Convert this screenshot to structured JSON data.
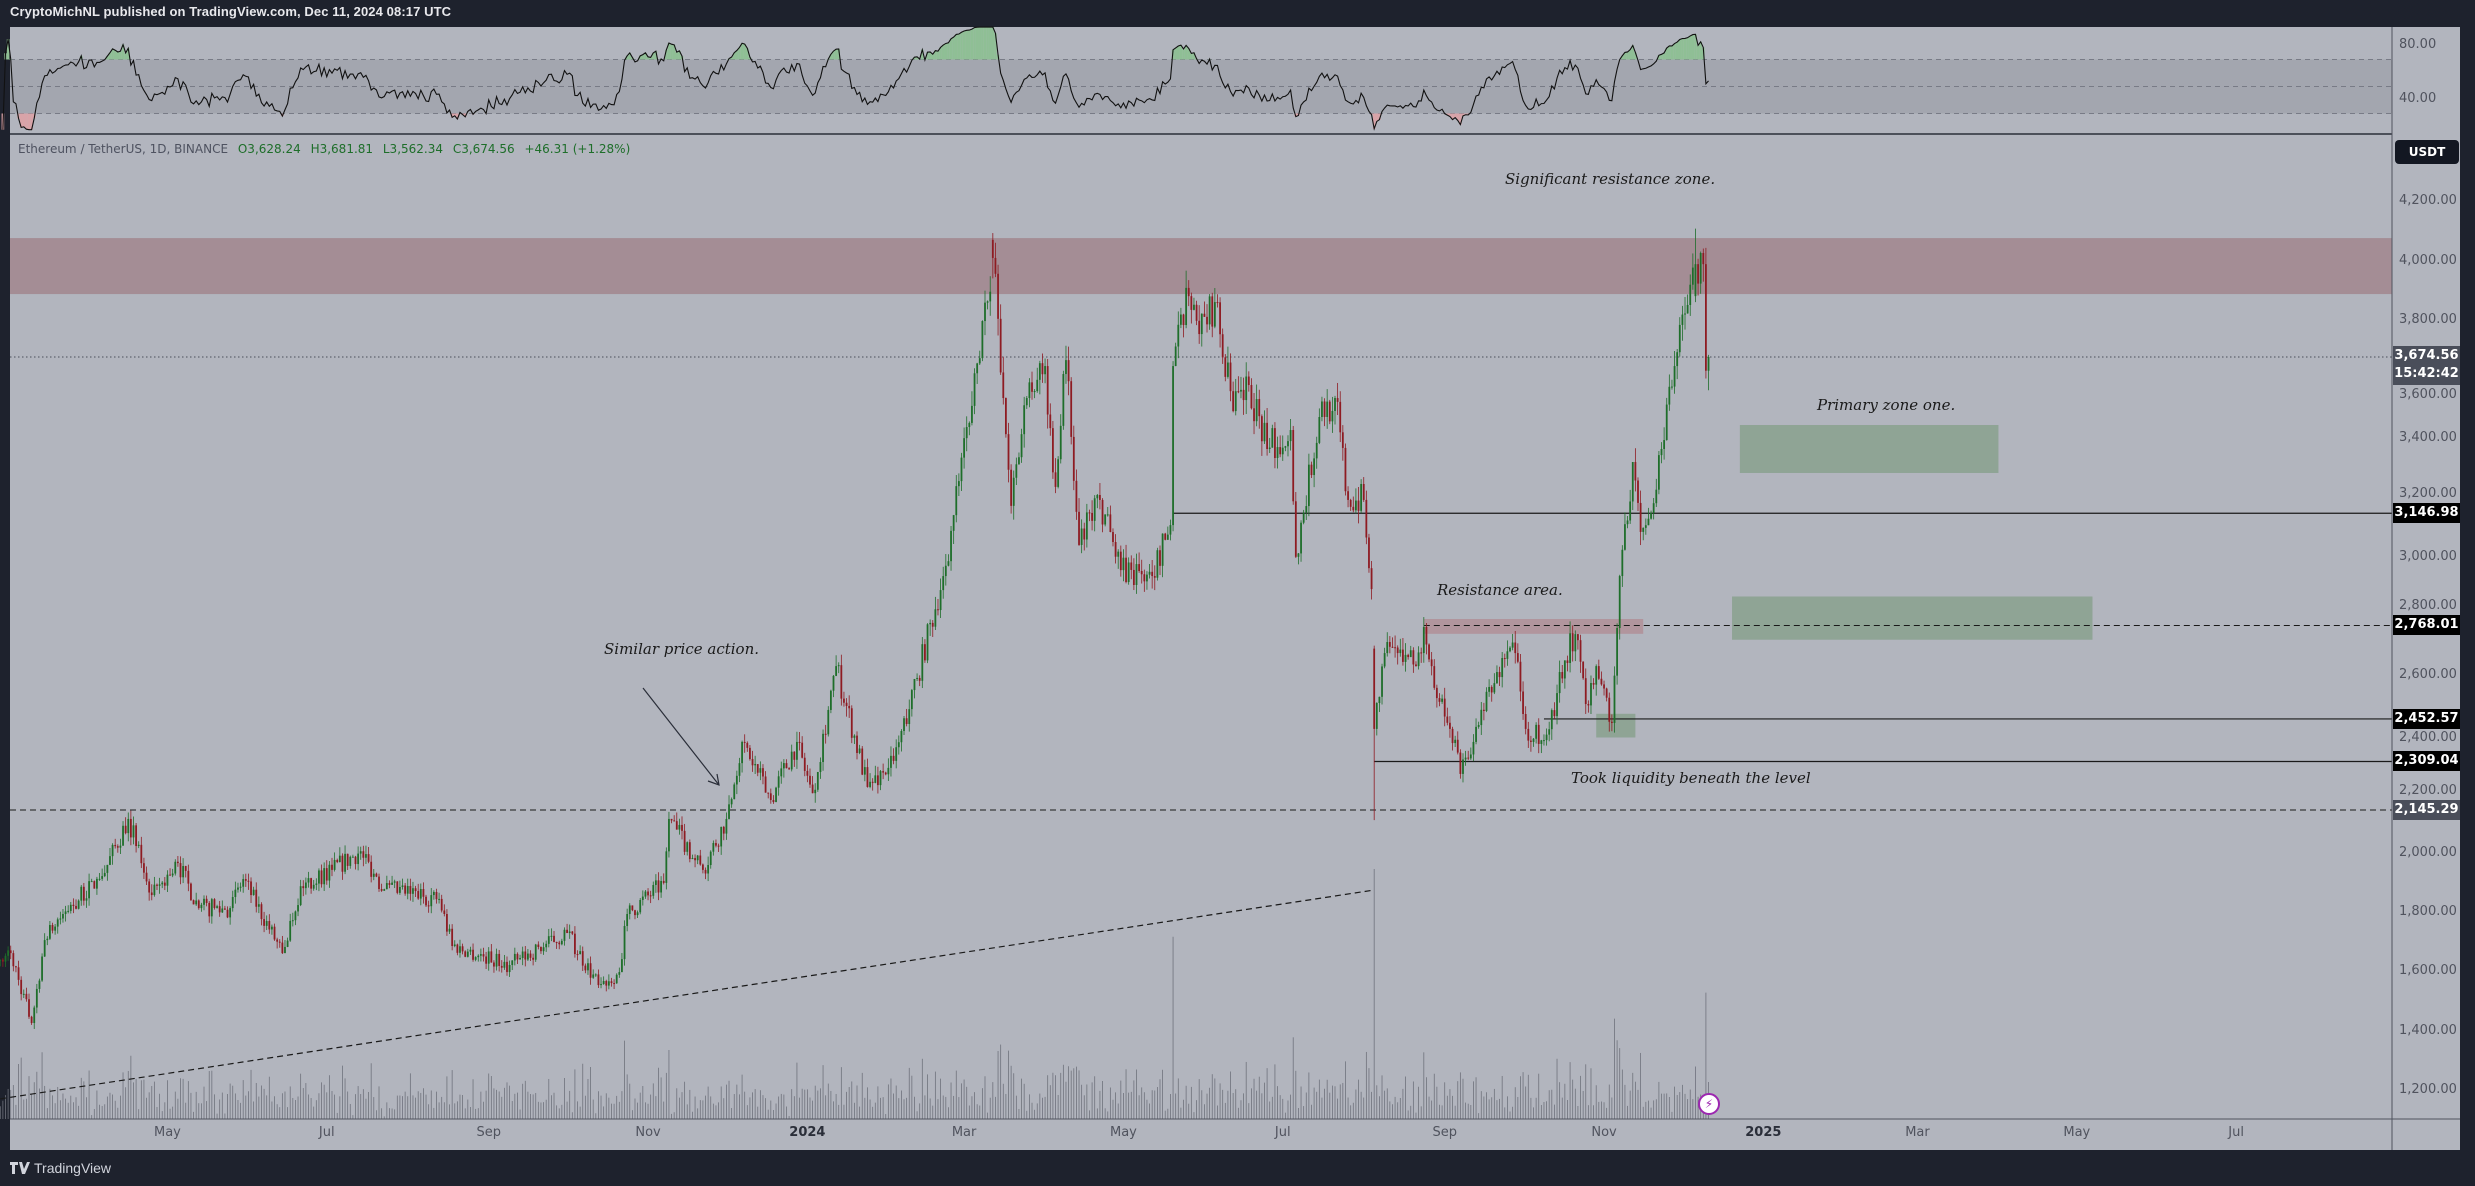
{
  "topbar": {
    "publisher_line": "CryptoMichNL published on TradingView.com, Dec 11, 2024 08:17 UTC"
  },
  "legend": {
    "symbol": "Ethereum / TetherUS, 1D, BINANCE",
    "open": "O3,628.24",
    "high": "H3,681.81",
    "low": "L3,562.34",
    "close": "C3,674.56",
    "change": "+46.31 (+1.28%)"
  },
  "price_axis": {
    "currency_button": "USDT",
    "ticks": [
      "4,200.00",
      "4,000.00",
      "3,800.00",
      "3,600.00",
      "3,400.00",
      "3,200.00",
      "3,000.00",
      "2,800.00",
      "2,600.00",
      "2,400.00",
      "2,200.00",
      "2,000.00",
      "1,800.00",
      "1,600.00",
      "1,400.00",
      "1,200.00"
    ],
    "current_price": "3,674.56",
    "countdown": "15:42:42",
    "level_labels": [
      "3,146.98",
      "2,768.01",
      "2,452.57",
      "2,309.04",
      "2,145.29"
    ]
  },
  "rsi_axis": {
    "ticks": [
      "80.00",
      "40.00"
    ]
  },
  "time_axis": {
    "ticks": [
      {
        "label": "May",
        "date": "2023-05-01",
        "bold": false
      },
      {
        "label": "Jul",
        "date": "2023-07-01",
        "bold": false
      },
      {
        "label": "Sep",
        "date": "2023-09-01",
        "bold": false
      },
      {
        "label": "Nov",
        "date": "2023-11-01",
        "bold": false
      },
      {
        "label": "2024",
        "date": "2024-01-01",
        "bold": true
      },
      {
        "label": "Mar",
        "date": "2024-03-01",
        "bold": false
      },
      {
        "label": "May",
        "date": "2024-05-01",
        "bold": false
      },
      {
        "label": "Jul",
        "date": "2024-07-01",
        "bold": false
      },
      {
        "label": "Sep",
        "date": "2024-09-01",
        "bold": false
      },
      {
        "label": "Nov",
        "date": "2024-11-01",
        "bold": false
      },
      {
        "label": "2025",
        "date": "2025-01-01",
        "bold": true
      },
      {
        "label": "Mar",
        "date": "2025-03-01",
        "bold": false
      },
      {
        "label": "May",
        "date": "2025-05-01",
        "bold": false
      },
      {
        "label": "Jul",
        "date": "2025-07-01",
        "bold": false
      }
    ]
  },
  "annotations": {
    "significant_resistance": "Significant resistance zone.",
    "primary_zone": "Primary zone one.",
    "resistance_area": "Resistance area.",
    "took_liquidity": "Took liquidity beneath the level",
    "similar_price_action": "Similar price action."
  },
  "footer": {
    "brand": "TradingView"
  },
  "colors": {
    "up": "#1e6e2a",
    "down": "#8e1b22",
    "background": "#b2b5be",
    "resistance_zone": "#a48d95",
    "support_zone": "#8fa495",
    "frame": "#1e222d"
  },
  "chart_data": {
    "type": "candlestick",
    "symbol": "ETHUSDT",
    "interval": "1D",
    "y_scale": "linear",
    "ylim": [
      1120,
      4330
    ],
    "xlim": [
      "2023-02-26",
      "2025-08-15"
    ],
    "close_keypoints": [
      [
        "2023-02-26",
        1640
      ],
      [
        "2023-03-02",
        1662
      ],
      [
        "2023-03-10",
        1426
      ],
      [
        "2023-03-15",
        1706
      ],
      [
        "2023-03-22",
        1794
      ],
      [
        "2023-04-06",
        1922
      ],
      [
        "2023-04-16",
        2115
      ],
      [
        "2023-04-25",
        1858
      ],
      [
        "2023-05-05",
        1966
      ],
      [
        "2023-05-13",
        1814
      ],
      [
        "2023-05-25",
        1814
      ],
      [
        "2023-05-30",
        1912
      ],
      [
        "2023-06-14",
        1662
      ],
      [
        "2023-06-21",
        1888
      ],
      [
        "2023-07-03",
        1943
      ],
      [
        "2023-07-14",
        2006
      ],
      [
        "2023-07-23",
        1878
      ],
      [
        "2023-08-13",
        1845
      ],
      [
        "2023-08-18",
        1686
      ],
      [
        "2023-09-09",
        1622
      ],
      [
        "2023-10-01",
        1730
      ],
      [
        "2023-10-13",
        1554
      ],
      [
        "2023-10-21",
        1598
      ],
      [
        "2023-10-24",
        1794
      ],
      [
        "2023-11-07",
        1899
      ],
      [
        "2023-11-09",
        2115
      ],
      [
        "2023-11-22",
        1943
      ],
      [
        "2023-12-01",
        2115
      ],
      [
        "2023-12-07",
        2375
      ],
      [
        "2023-12-18",
        2179
      ],
      [
        "2023-12-28",
        2375
      ],
      [
        "2024-01-03",
        2202
      ],
      [
        "2024-01-12",
        2631
      ],
      [
        "2024-01-24",
        2223
      ],
      [
        "2024-02-03",
        2311
      ],
      [
        "2024-02-12",
        2591
      ],
      [
        "2024-02-22",
        2935
      ],
      [
        "2024-03-03",
        3452
      ],
      [
        "2024-03-08",
        3796
      ],
      [
        "2024-03-12",
        4009
      ],
      [
        "2024-03-16",
        3536
      ],
      [
        "2024-03-19",
        3172
      ],
      [
        "2024-03-25",
        3536
      ],
      [
        "2024-04-01",
        3644
      ],
      [
        "2024-04-05",
        3236
      ],
      [
        "2024-04-09",
        3664
      ],
      [
        "2024-04-14",
        3040
      ],
      [
        "2024-04-22",
        3192
      ],
      [
        "2024-04-30",
        2955
      ],
      [
        "2024-05-12",
        2935
      ],
      [
        "2024-05-19",
        3107
      ],
      [
        "2024-05-20",
        3644
      ],
      [
        "2024-05-26",
        3880
      ],
      [
        "2024-05-30",
        3752
      ],
      [
        "2024-06-05",
        3860
      ],
      [
        "2024-06-12",
        3492
      ],
      [
        "2024-06-18",
        3580
      ],
      [
        "2024-06-25",
        3364
      ],
      [
        "2024-07-04",
        3428
      ],
      [
        "2024-07-06",
        3000
      ],
      [
        "2024-07-15",
        3472
      ],
      [
        "2024-07-21",
        3536
      ],
      [
        "2024-07-26",
        3192
      ],
      [
        "2024-08-01",
        3192
      ],
      [
        "2024-08-04",
        2891
      ],
      [
        "2024-08-05",
        2419
      ],
      [
        "2024-08-09",
        2675
      ],
      [
        "2024-08-14",
        2675
      ],
      [
        "2024-08-21",
        2631
      ],
      [
        "2024-08-24",
        2763
      ],
      [
        "2024-08-29",
        2523
      ],
      [
        "2024-09-03",
        2419
      ],
      [
        "2024-09-07",
        2267
      ],
      [
        "2024-09-12",
        2375
      ],
      [
        "2024-09-21",
        2611
      ],
      [
        "2024-09-28",
        2675
      ],
      [
        "2024-10-02",
        2419
      ],
      [
        "2024-10-04",
        2375
      ],
      [
        "2024-10-13",
        2462
      ],
      [
        "2024-10-15",
        2611
      ],
      [
        "2024-10-21",
        2739
      ],
      [
        "2024-10-25",
        2503
      ],
      [
        "2024-10-29",
        2631
      ],
      [
        "2024-11-04",
        2439
      ],
      [
        "2024-11-07",
        2935
      ],
      [
        "2024-11-12",
        3320
      ],
      [
        "2024-11-15",
        3084
      ],
      [
        "2024-11-19",
        3148
      ],
      [
        "2024-11-23",
        3364
      ],
      [
        "2024-11-28",
        3644
      ],
      [
        "2024-12-06",
        3988
      ],
      [
        "2024-12-09",
        3988
      ],
      [
        "2024-12-10",
        3628.24
      ],
      [
        "2024-12-11",
        3674.56
      ]
    ],
    "notable_candles": [
      {
        "date": "2024-03-12",
        "open": 4070,
        "high": 4093,
        "low": 3940,
        "close": 4009
      },
      {
        "date": "2024-08-05",
        "open": 2690,
        "high": 2700,
        "low": 2111,
        "close": 2419
      },
      {
        "date": "2024-12-06",
        "open": 3880,
        "high": 4108,
        "low": 3860,
        "close": 3988
      },
      {
        "date": "2024-12-11",
        "open": 3628.24,
        "high": 3681.81,
        "low": 3562.34,
        "close": 3674.56
      }
    ],
    "zones": [
      {
        "label": "Significant resistance zone.",
        "kind": "resistance",
        "from": 3887,
        "to": 4076,
        "start": "2023-02-26",
        "end": "extend-right"
      },
      {
        "label": "Resistance area.",
        "kind": "resistance",
        "from": 2740,
        "to": 2790,
        "start": "2024-08-24",
        "end": "2024-11-16"
      },
      {
        "label": "Primary zone one.",
        "kind": "support",
        "from": 3283,
        "to": 3445,
        "start": "2024-12-23",
        "end": "2025-04-01"
      },
      {
        "label": "",
        "kind": "support",
        "from": 2720,
        "to": 2866,
        "start": "2024-12-20",
        "end": "2025-05-07"
      },
      {
        "label": "",
        "kind": "support",
        "from": 2390,
        "to": 2470,
        "start": "2024-10-29",
        "end": "2024-11-13"
      }
    ],
    "levels": [
      {
        "value": 3146.98,
        "style": "solid",
        "start": "2024-05-20"
      },
      {
        "value": 2768.01,
        "style": "dashed",
        "start": "2024-08-24"
      },
      {
        "value": 2452.57,
        "style": "solid",
        "start": "2024-10-09"
      },
      {
        "value": 2309.04,
        "style": "solid",
        "start": "2024-08-05"
      },
      {
        "value": 2145.29,
        "style": "dashed",
        "start": "2023-02-26"
      },
      {
        "value": 3674.56,
        "style": "dotted",
        "start": "2023-02-26"
      }
    ],
    "trendline": {
      "style": "dashed",
      "from": [
        "2023-02-26",
        1170
      ],
      "to": [
        "2024-08-05",
        1875
      ]
    },
    "rsi": {
      "period": 14,
      "upper": 70,
      "middle": 50,
      "lower": 30,
      "axis_ticks": [
        80,
        40
      ]
    }
  }
}
